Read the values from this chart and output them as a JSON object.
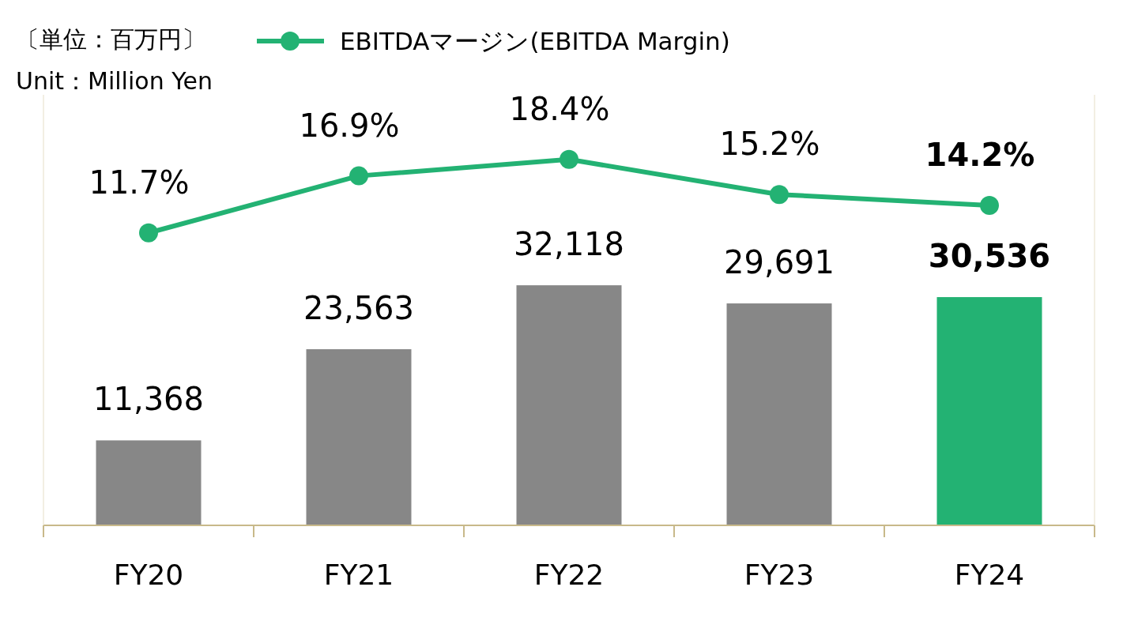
{
  "chart_data": {
    "type": "bar",
    "categories": [
      "FY20",
      "FY21",
      "FY22",
      "FY23",
      "FY24"
    ],
    "annotations": [
      "〔単位：百万円〕",
      "Unit：Million Yen"
    ],
    "legend": "top",
    "tick_labels": "x",
    "ylim": [
      0,
      57600
    ],
    "y2lim": [
      -15,
      24.3
    ],
    "series": [
      {
        "values": [
          11368,
          23563,
          32118,
          29691,
          30536
        ],
        "colors": [
          "#878787",
          "#878787",
          "#878787",
          "#878787",
          "#23b273"
        ],
        "value_labels": [
          "11,368",
          "23,563",
          "32,118",
          "29,691",
          "30,536"
        ]
      },
      {
        "type": "line",
        "axis": "y2",
        "name": "EBITDAマージン(EBITDA Margin)",
        "color": "#23b273",
        "marker": "circle",
        "values": [
          11.7,
          16.9,
          18.4,
          15.2,
          14.2
        ],
        "value_labels": [
          "11.7%",
          "16.9%",
          "18.4%",
          "15.2%",
          "14.2%"
        ]
      }
    ]
  }
}
